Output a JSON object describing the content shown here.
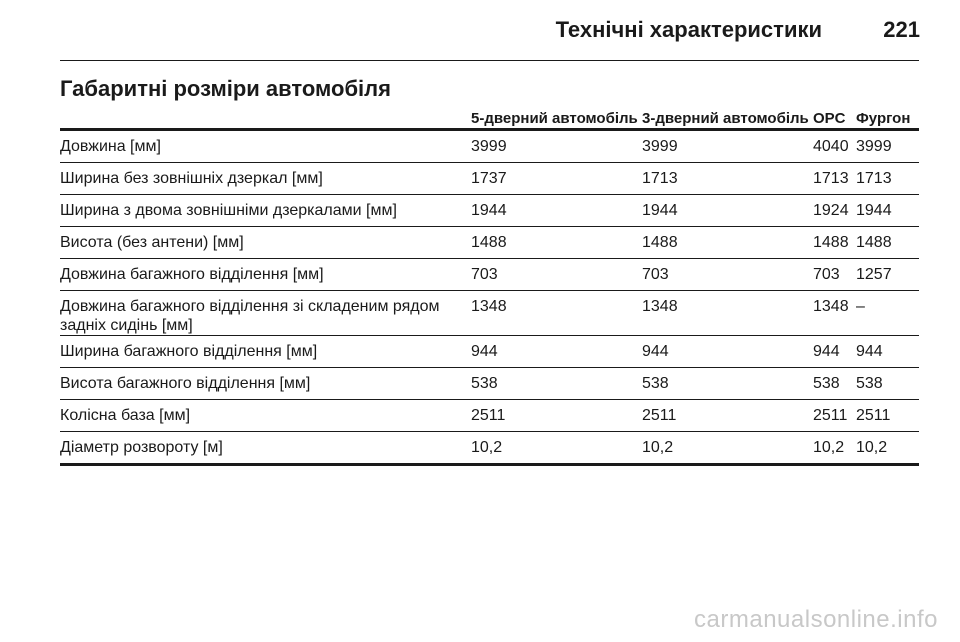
{
  "header": {
    "title": "Технічні характеристики",
    "page_number": "221"
  },
  "section_title": "Габаритні розміри автомобіля",
  "table": {
    "columns": [
      "",
      "5-дверний автомобіль",
      "3-дверний автомобіль",
      "OPC",
      "Фургон"
    ],
    "rows": [
      [
        "Довжина [мм]",
        "3999",
        "3999",
        "4040",
        "3999"
      ],
      [
        "Ширина без зовнішніх дзеркал [мм]",
        "1737",
        "1713",
        "1713",
        "1713"
      ],
      [
        "Ширина з двома зовнішніми дзеркалами [мм]",
        "1944",
        "1944",
        "1924",
        "1944"
      ],
      [
        "Висота (без антени) [мм]",
        "1488",
        "1488",
        "1488",
        "1488"
      ],
      [
        "Довжина багажного відділення [мм]",
        "703",
        "703",
        "703",
        "1257"
      ],
      [
        "Довжина багажного відділення зі складеним рядом задніх сидінь [мм]",
        "1348",
        "1348",
        "1348",
        "–"
      ],
      [
        "Ширина багажного відділення [мм]",
        "944",
        "944",
        "944",
        "944"
      ],
      [
        "Висота багажного відділення [мм]",
        "538",
        "538",
        "538",
        "538"
      ],
      [
        "Колісна база [мм]",
        "2511",
        "2511",
        "2511",
        "2511"
      ],
      [
        "Діаметр розвороту [м]",
        "10,2",
        "10,2",
        "10,2",
        "10,2"
      ]
    ]
  },
  "watermark": "carmanualsonline.info"
}
